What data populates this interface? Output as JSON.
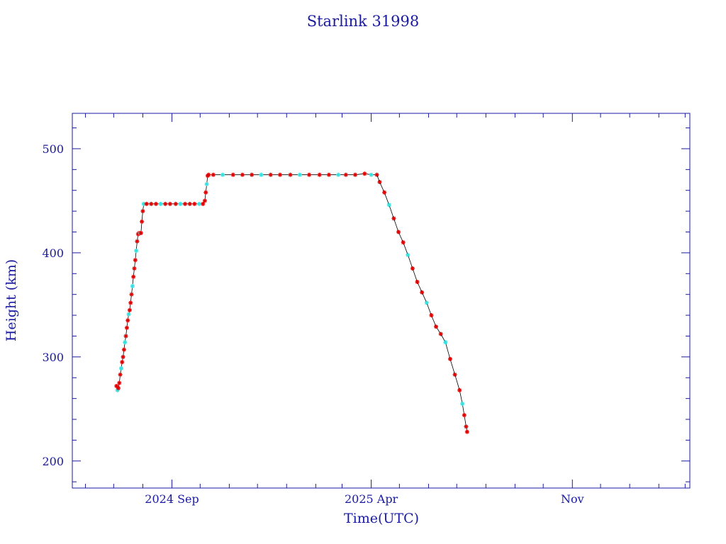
{
  "chart_data": {
    "type": "scatter",
    "title": "Starlink 31998",
    "xlabel": "Time(UTC)",
    "ylabel": "Height (km)",
    "xlim": [
      "2024-05-18",
      "2026-03-06"
    ],
    "ylim": [
      174,
      534
    ],
    "x_ticks": [
      {
        "date": "2024-09-01",
        "label": "2024 Sep"
      },
      {
        "date": "2025-04-01",
        "label": "2025 Apr"
      },
      {
        "date": "2025-11-01",
        "label": "Nov"
      }
    ],
    "y_ticks": [
      200,
      300,
      400,
      500
    ],
    "grid": false,
    "colors": {
      "axes": "#1a1aa0",
      "marker": "#e00000",
      "marker_alt": "#33e0e0",
      "line": "#000000"
    },
    "series": [
      {
        "values": [
          [
            "2024-07-04",
            272
          ],
          [
            "2024-07-05",
            268
          ],
          [
            "2024-07-06",
            270
          ],
          [
            "2024-07-07",
            275
          ],
          [
            "2024-07-08",
            283
          ],
          [
            "2024-07-09",
            289
          ],
          [
            "2024-07-10",
            295
          ],
          [
            "2024-07-11",
            300
          ],
          [
            "2024-07-12",
            307
          ],
          [
            "2024-07-13",
            314
          ],
          [
            "2024-07-14",
            320
          ],
          [
            "2024-07-15",
            328
          ],
          [
            "2024-07-16",
            335
          ],
          [
            "2024-07-17",
            341
          ],
          [
            "2024-07-18",
            345
          ],
          [
            "2024-07-19",
            352
          ],
          [
            "2024-07-20",
            360
          ],
          [
            "2024-07-21",
            368
          ],
          [
            "2024-07-22",
            377
          ],
          [
            "2024-07-23",
            385
          ],
          [
            "2024-07-24",
            393
          ],
          [
            "2024-07-25",
            402
          ],
          [
            "2024-07-26",
            411
          ],
          [
            "2024-07-27",
            418
          ],
          [
            "2024-07-28",
            419
          ],
          [
            "2024-07-29",
            419
          ],
          [
            "2024-07-30",
            419
          ],
          [
            "2024-07-31",
            430
          ],
          [
            "2024-08-01",
            440
          ],
          [
            "2024-08-02",
            447
          ],
          [
            "2024-08-05",
            447
          ],
          [
            "2024-08-10",
            447
          ],
          [
            "2024-08-15",
            447
          ],
          [
            "2024-08-20",
            447
          ],
          [
            "2024-08-25",
            447
          ],
          [
            "2024-08-30",
            447
          ],
          [
            "2024-09-05",
            447
          ],
          [
            "2024-09-10",
            447
          ],
          [
            "2024-09-15",
            447
          ],
          [
            "2024-09-20",
            447
          ],
          [
            "2024-09-25",
            447
          ],
          [
            "2024-09-30",
            447
          ],
          [
            "2024-10-04",
            447
          ],
          [
            "2024-10-06",
            450
          ],
          [
            "2024-10-07",
            458
          ],
          [
            "2024-10-08",
            466
          ],
          [
            "2024-10-09",
            474
          ],
          [
            "2024-10-10",
            475
          ],
          [
            "2024-10-15",
            475
          ],
          [
            "2024-10-25",
            475
          ],
          [
            "2024-11-05",
            475
          ],
          [
            "2024-11-15",
            475
          ],
          [
            "2024-11-25",
            475
          ],
          [
            "2024-12-05",
            475
          ],
          [
            "2024-12-15",
            475
          ],
          [
            "2024-12-25",
            475
          ],
          [
            "2025-01-05",
            475
          ],
          [
            "2025-01-15",
            475
          ],
          [
            "2025-01-25",
            475
          ],
          [
            "2025-02-05",
            475
          ],
          [
            "2025-02-15",
            475
          ],
          [
            "2025-02-25",
            475
          ],
          [
            "2025-03-05",
            475
          ],
          [
            "2025-03-15",
            475
          ],
          [
            "2025-03-25",
            476
          ],
          [
            "2025-04-01",
            475
          ],
          [
            "2025-04-07",
            475
          ],
          [
            "2025-04-10",
            468
          ],
          [
            "2025-04-15",
            458
          ],
          [
            "2025-04-20",
            446
          ],
          [
            "2025-04-25",
            433
          ],
          [
            "2025-04-30",
            420
          ],
          [
            "2025-05-05",
            410
          ],
          [
            "2025-05-10",
            398
          ],
          [
            "2025-05-15",
            385
          ],
          [
            "2025-05-20",
            372
          ],
          [
            "2025-05-25",
            362
          ],
          [
            "2025-05-30",
            352
          ],
          [
            "2025-06-04",
            340
          ],
          [
            "2025-06-09",
            329
          ],
          [
            "2025-06-14",
            322
          ],
          [
            "2025-06-19",
            314
          ],
          [
            "2025-06-24",
            298
          ],
          [
            "2025-06-29",
            283
          ],
          [
            "2025-07-04",
            268
          ],
          [
            "2025-07-07",
            255
          ],
          [
            "2025-07-09",
            244
          ],
          [
            "2025-07-11",
            233
          ],
          [
            "2025-07-12",
            228
          ]
        ]
      }
    ]
  }
}
